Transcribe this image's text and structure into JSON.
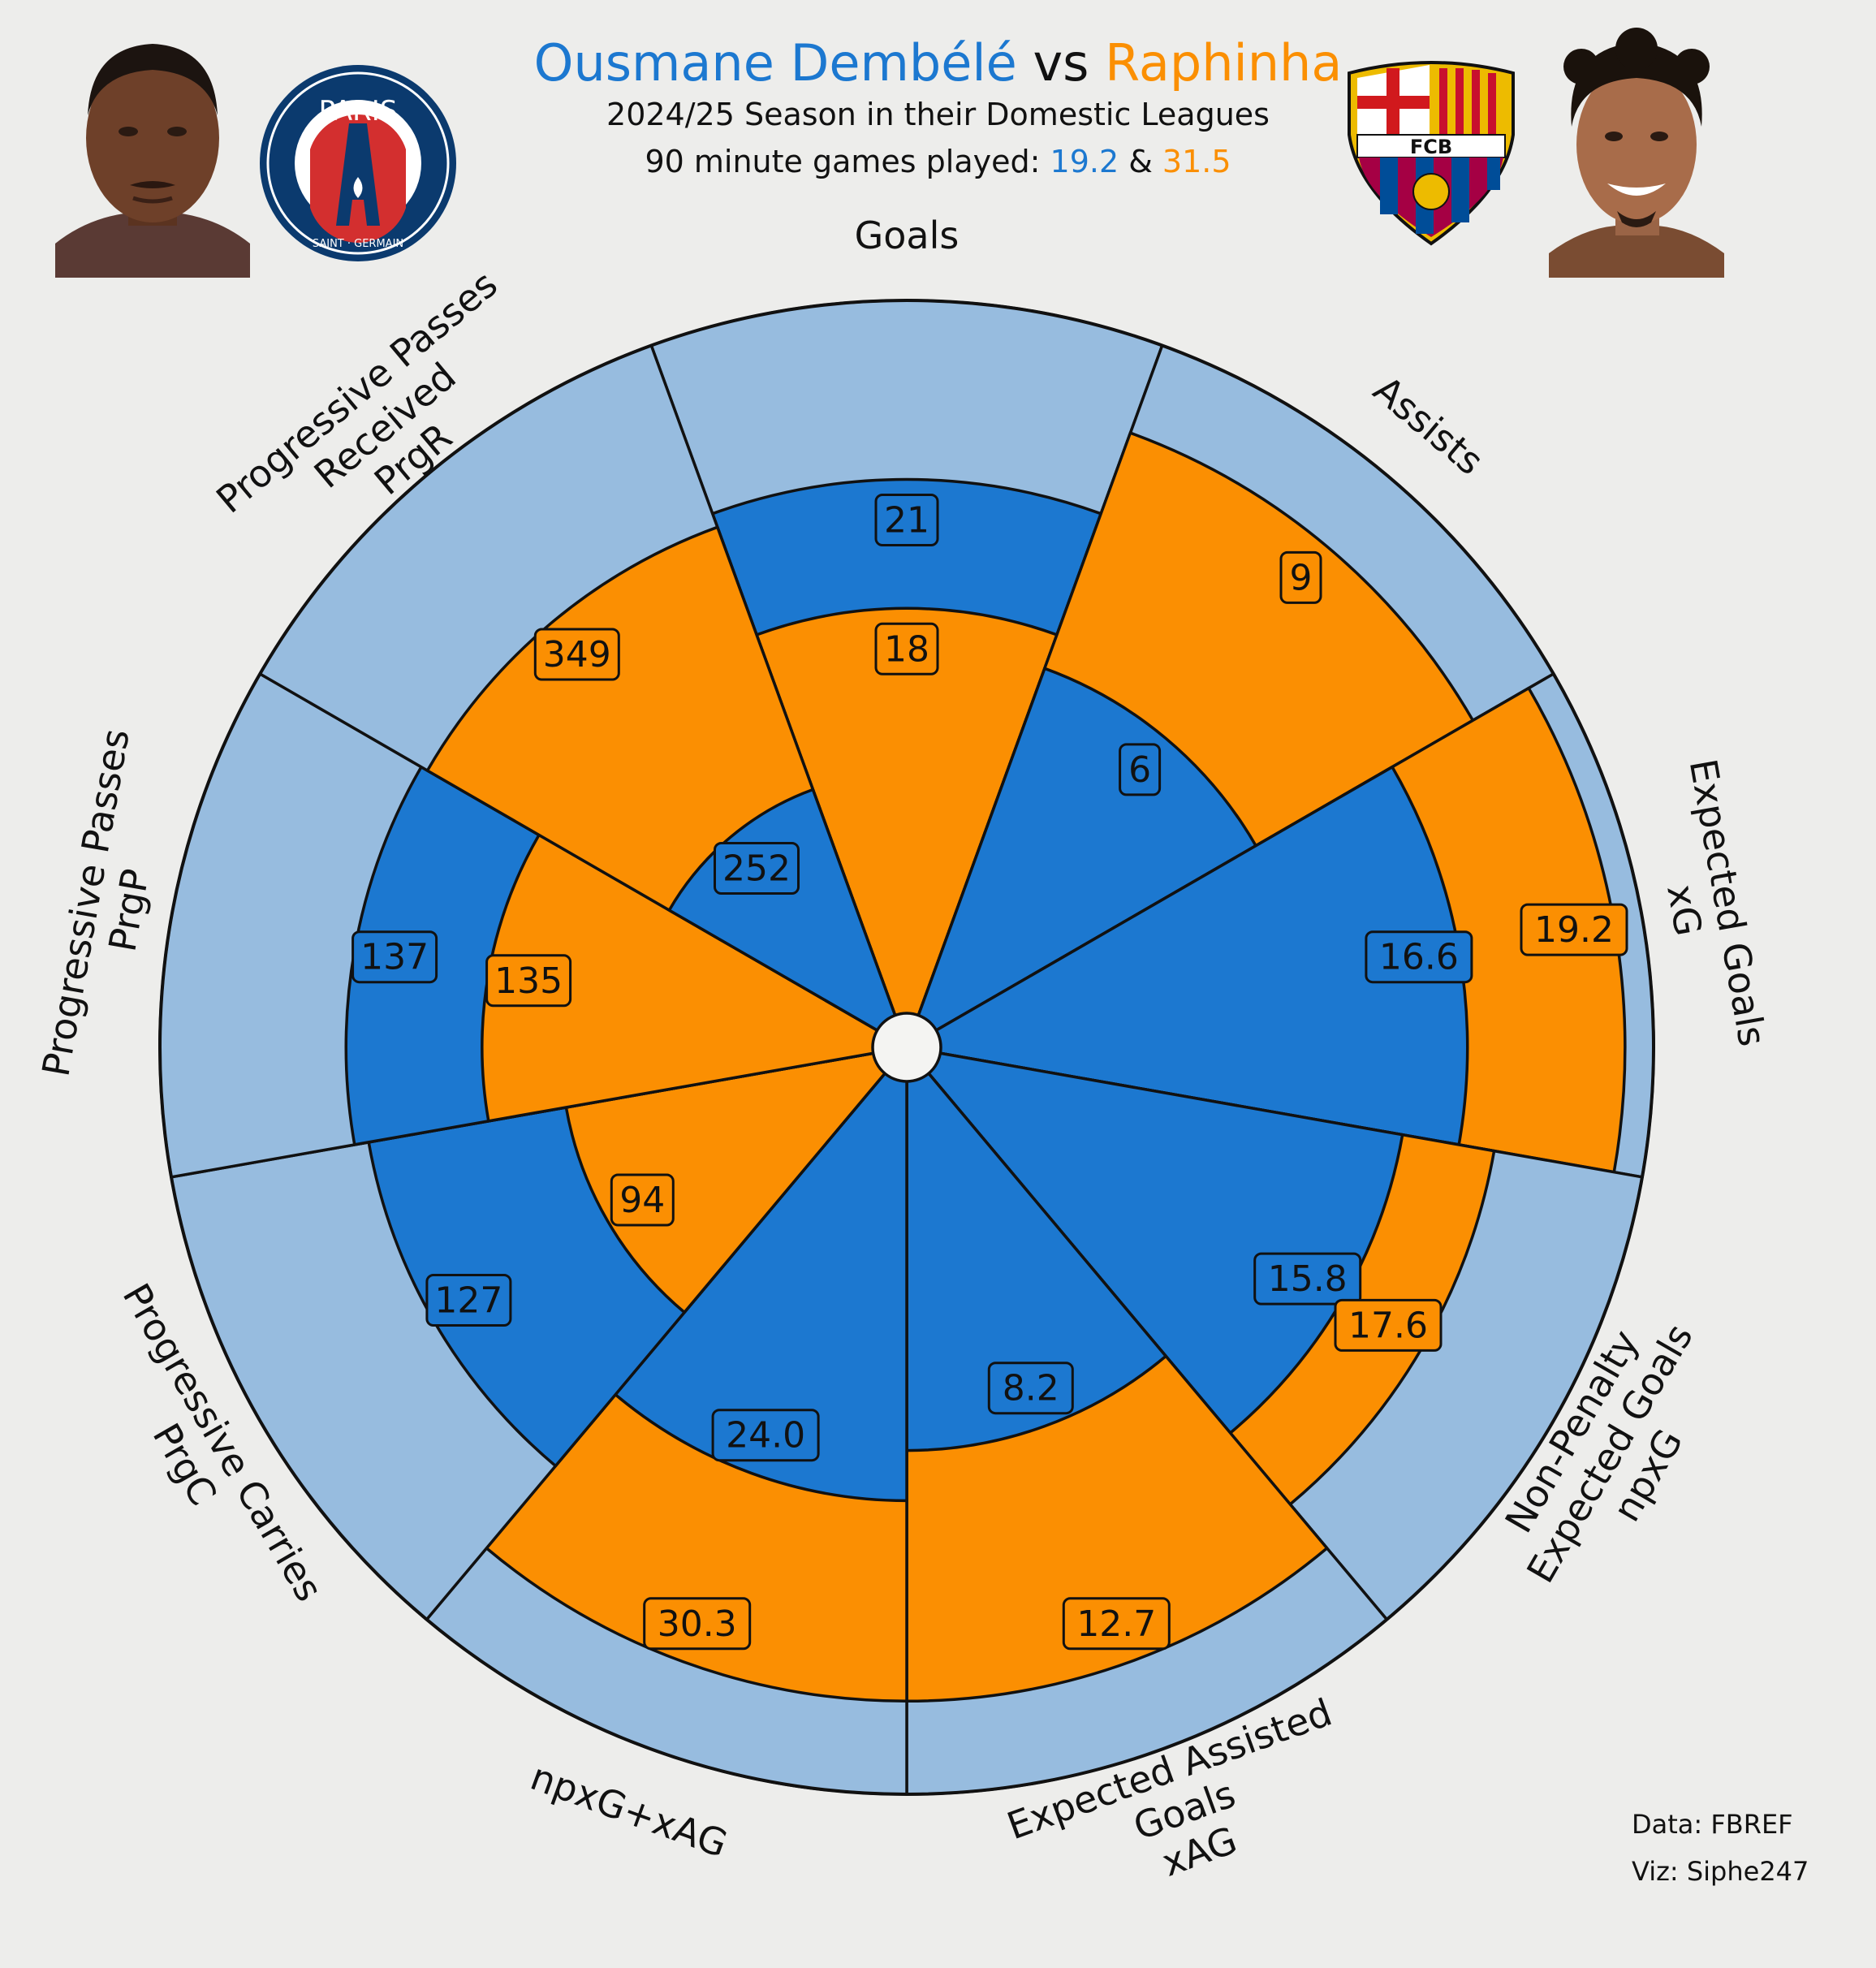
{
  "header": {
    "player1": "Ousmane Dembélé",
    "vs": "vs",
    "player2": "Raphinha",
    "subtitle": "2024/25 Season in their Domestic Leagues",
    "games_prefix": "90 minute games played: ",
    "games1": "19.2",
    "games_sep": " & ",
    "games2": "31.5"
  },
  "logos": {
    "psg_top": "PARIS",
    "psg_bottom": "SAINT · GERMAIN",
    "fcb_text": "FCB"
  },
  "credits": {
    "data": "Data: FBREF",
    "viz": "Viz: Siphe247"
  },
  "colors": {
    "player1": "#1c78d0",
    "player2": "#fb8f02",
    "background_wedge": "#97bcdf",
    "page": "#ededeb"
  },
  "chart_data": {
    "type": "pie",
    "subtype": "comparison pizza / radar",
    "categories": [
      [
        "Goals"
      ],
      [
        "Assists"
      ],
      [
        "Expected Goals",
        "xG"
      ],
      [
        "Non-Penalty",
        "Expected Goals",
        "npxG"
      ],
      [
        "Expected Assisted",
        "Goals",
        "xAG"
      ],
      [
        "npxG+xAG"
      ],
      [
        "Progressive Carries",
        "PrgC"
      ],
      [
        "Progressive Passes",
        "PrgP"
      ],
      [
        "Progressive Passes",
        "Received",
        "PrgR"
      ]
    ],
    "series": [
      {
        "name": "Ousmane Dembélé",
        "values": [
          21,
          6,
          16.6,
          15.8,
          8.2,
          24.0,
          127,
          137,
          252
        ],
        "labels": [
          "21",
          "6",
          "16.6",
          "15.8",
          "8.2",
          "24.0",
          "127",
          "137",
          "252"
        ]
      },
      {
        "name": "Raphinha",
        "values": [
          18,
          9,
          19.2,
          17.6,
          12.7,
          30.3,
          94,
          135,
          349
        ],
        "labels": [
          "18",
          "9",
          "19.2",
          "17.6",
          "12.7",
          "30.3",
          "94",
          "135",
          "349"
        ]
      }
    ],
    "radial_fraction": {
      "Ousmane Dembélé": [
        0.75,
        0.52,
        0.74,
        0.66,
        0.52,
        0.59,
        0.72,
        0.74,
        0.34
      ],
      "Raphinha": [
        0.57,
        0.87,
        0.96,
        0.79,
        0.87,
        0.87,
        0.44,
        0.55,
        0.73
      ]
    }
  }
}
